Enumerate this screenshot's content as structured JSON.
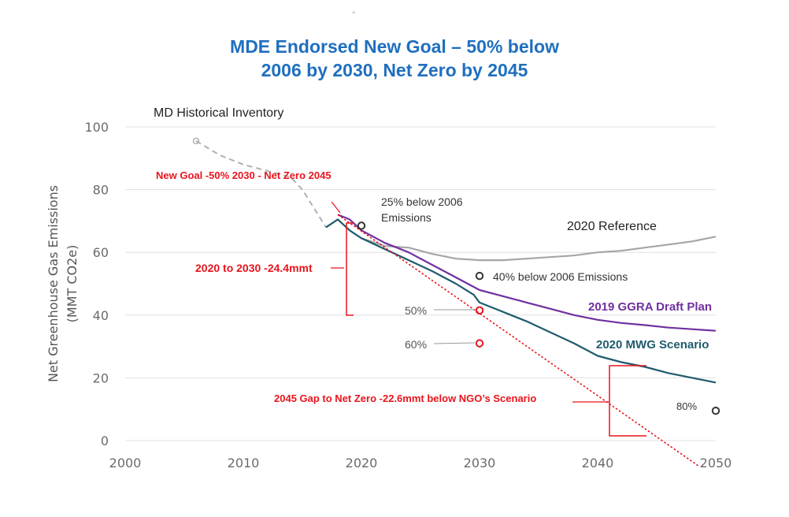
{
  "colors": {
    "title": "#1f6fbf",
    "historical": "#b0b0b0",
    "reference": "#a6a6a6",
    "ggra": "#7030a0",
    "mwg": "#1f5b6e",
    "annotation_red": "#e8141c",
    "grid": "#e0e0e0"
  },
  "header": {
    "title_line1": "MDE Endorsed New Goal – 50% below",
    "title_line2": "2006 by 2030, Net Zero by 2045",
    "tiny_mark": "°"
  },
  "chart_data": {
    "type": "line",
    "title": "MDE Endorsed New Goal – 50% below 2006 by 2030, Net Zero by 2045",
    "xlabel": "",
    "ylabel": "Net Greenhouse Gas Emissions (MMT CO2e)",
    "ylabel_line1": "Net Greenhouse Gas Emissions",
    "ylabel_line2": "(MMT CO2e)",
    "xlim": [
      2000,
      2050
    ],
    "ylim": [
      0,
      100
    ],
    "x_ticks": [
      2000,
      2010,
      2020,
      2030,
      2040,
      2050
    ],
    "y_ticks": [
      0,
      20,
      40,
      60,
      80,
      100
    ],
    "x_tick_labels": [
      "2000",
      "2010",
      "2020",
      "2030",
      "2040",
      "2050"
    ],
    "y_tick_labels": [
      "0",
      "20",
      "40",
      "60",
      "80",
      "100"
    ],
    "grid": "horizontal",
    "series": [
      {
        "name": "MD Historical Inventory",
        "color": "#b0b0b0",
        "dashed": true,
        "x": [
          2006,
          2008,
          2010,
          2012,
          2014,
          2015,
          2016,
          2017
        ],
        "y": [
          95.5,
          91,
          88,
          86,
          84,
          80,
          74,
          68
        ]
      },
      {
        "name": "2020 Reference",
        "color": "#a6a6a6",
        "x": [
          2020,
          2022,
          2024,
          2026,
          2028,
          2030,
          2032,
          2034,
          2036,
          2038,
          2040,
          2042,
          2044,
          2046,
          2048,
          2050
        ],
        "y": [
          64.5,
          62,
          61.5,
          59.5,
          58,
          57.5,
          57.5,
          58,
          58.5,
          59,
          60,
          60.5,
          61.5,
          62.5,
          63.5,
          65
        ]
      },
      {
        "name": "2019 GGRA Draft Plan",
        "color": "#7030a0",
        "x": [
          2018,
          2019,
          2020,
          2022,
          2024,
          2026,
          2028,
          2030,
          2032,
          2034,
          2036,
          2038,
          2040,
          2042,
          2044,
          2046,
          2048,
          2050
        ],
        "y": [
          72,
          70.5,
          67,
          63,
          60,
          56,
          52,
          48,
          46,
          44,
          42,
          40,
          38.5,
          37.5,
          36.8,
          36,
          35.5,
          35
        ]
      },
      {
        "name": "2020 MWG Scenario",
        "color": "#1f5b6e",
        "x": [
          2017,
          2018,
          2019,
          2020,
          2022,
          2024,
          2026,
          2028,
          2029.5,
          2030,
          2032,
          2034,
          2036,
          2038,
          2040,
          2042,
          2044,
          2046,
          2048,
          2050
        ],
        "y": [
          68,
          70.5,
          67,
          64.5,
          61,
          57.5,
          54,
          50,
          46.5,
          44,
          41,
          38,
          34.5,
          31,
          27,
          25,
          23.5,
          21.5,
          20,
          18.5
        ]
      },
      {
        "name": "New Goal -50% 2030 - Net Zero 2045",
        "color": "#e8141c",
        "dotted": true,
        "x": [
          2018,
          2048.5
        ],
        "y": [
          72,
          -8
        ]
      }
    ],
    "markers": [
      {
        "label": "25% below 2006 Emissions",
        "label_line1": "25% below 2006",
        "label_line2": "Emissions",
        "x": 2020,
        "y": 68.5,
        "color": "#333333"
      },
      {
        "label": "40% below 2006 Emissions",
        "x": 2030,
        "y": 52.5,
        "color": "#333333"
      },
      {
        "label": "50%",
        "x": 2030,
        "y": 41.5,
        "color": "#e8141c"
      },
      {
        "label": "60%",
        "x": 2030,
        "y": 31,
        "color": "#e8141c"
      },
      {
        "label": "80%",
        "x": 2050,
        "y": 9.5,
        "color": "#333333"
      }
    ],
    "annotations": {
      "historical_label": "MD Historical Inventory",
      "reference_label": "2020 Reference",
      "ggra_label": "2019 GGRA Draft Plan",
      "mwg_label": "2020 MWG Scenario",
      "new_goal_label": "New Goal -50% 2030 - Net Zero 2045",
      "gap_2030_label": "2020 to 2030 -24.4mmt",
      "gap_2045_label": "2045 Gap to Net Zero -22.6mmt below NGO’s Scenario"
    }
  }
}
